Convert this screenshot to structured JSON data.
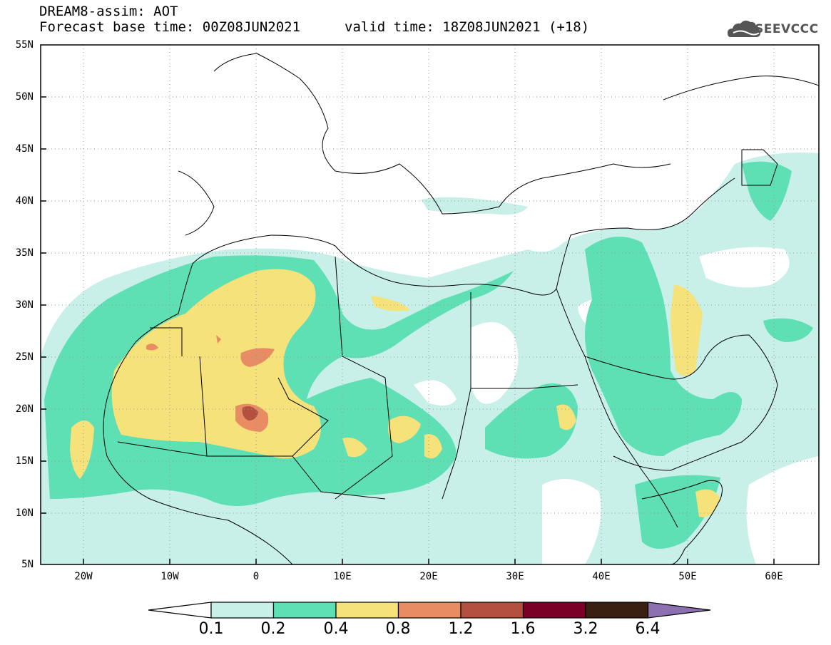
{
  "header": {
    "title_line": "DREAM8-assim: AOT",
    "base_time_line": "Forecast base time: 00Z08JUN2021",
    "valid_time_line": "valid time: 18Z08JUN2021 (+18)"
  },
  "logo": {
    "text": "SEEVCCC",
    "icon": "cloud-logo-icon"
  },
  "axes": {
    "lat_labels": [
      "55N",
      "50N",
      "45N",
      "40N",
      "35N",
      "30N",
      "25N",
      "20N",
      "15N",
      "10N",
      "5N"
    ],
    "lon_labels": [
      "20W",
      "10W",
      "0",
      "10E",
      "20E",
      "30E",
      "40E",
      "50E",
      "60E"
    ]
  },
  "colorbar": {
    "labels": [
      "0.1",
      "0.2",
      "0.4",
      "0.8",
      "1.2",
      "1.6",
      "3.2",
      "6.4"
    ],
    "colors": [
      "#ffffff",
      "#c8f0e8",
      "#5fdfb4",
      "#f5e27a",
      "#e88c64",
      "#b35040",
      "#7a0028",
      "#3a2010",
      "#8c70b0"
    ]
  },
  "fields": {
    "contour_colors": {
      "c01": "#c8f0e8",
      "c02": "#5fdfb4",
      "c04": "#f5e27a",
      "c08": "#e88c64",
      "c12": "#b35040"
    }
  }
}
